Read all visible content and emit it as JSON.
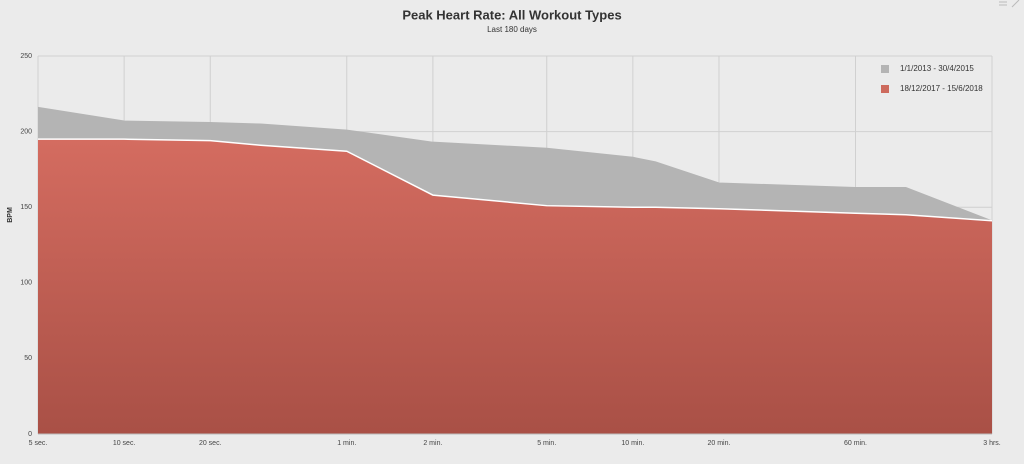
{
  "chart_data": {
    "type": "area",
    "title": "Peak Heart Rate: All Workout Types",
    "subtitle": "Last 180 days",
    "ylabel": "BPM",
    "x": [
      5,
      10,
      20,
      30,
      60,
      120,
      300,
      600,
      720,
      1200,
      3600,
      5400,
      10800
    ],
    "series": [
      {
        "name": "1/1/2013 - 30/4/2015",
        "color": "#b4b4b4",
        "values": [
          216,
          207,
          206,
          205,
          201,
          193,
          189,
          183,
          180,
          166,
          163,
          163,
          141
        ]
      },
      {
        "name": "18/12/2017 - 15/6/2018",
        "color": "#cd6a5d",
        "values": [
          195,
          195,
          194,
          191,
          187,
          158,
          151,
          150,
          150,
          149,
          146,
          145,
          141
        ]
      }
    ],
    "xscale": "log",
    "xlim": [
      5,
      10800
    ],
    "xticks": [
      {
        "value": 5,
        "label": "5 sec."
      },
      {
        "value": 10,
        "label": "10 sec."
      },
      {
        "value": 20,
        "label": "20 sec."
      },
      {
        "value": 60,
        "label": "1 min."
      },
      {
        "value": 120,
        "label": "2 min."
      },
      {
        "value": 300,
        "label": "5 min."
      },
      {
        "value": 600,
        "label": "10 min."
      },
      {
        "value": 1200,
        "label": "20 min."
      },
      {
        "value": 3600,
        "label": "60 min."
      },
      {
        "value": 10800,
        "label": "3 hrs."
      }
    ],
    "ylim": [
      0,
      250
    ],
    "yticks": [
      0,
      50,
      100,
      150,
      200,
      250
    ],
    "grid": true,
    "legend": "top-right"
  }
}
